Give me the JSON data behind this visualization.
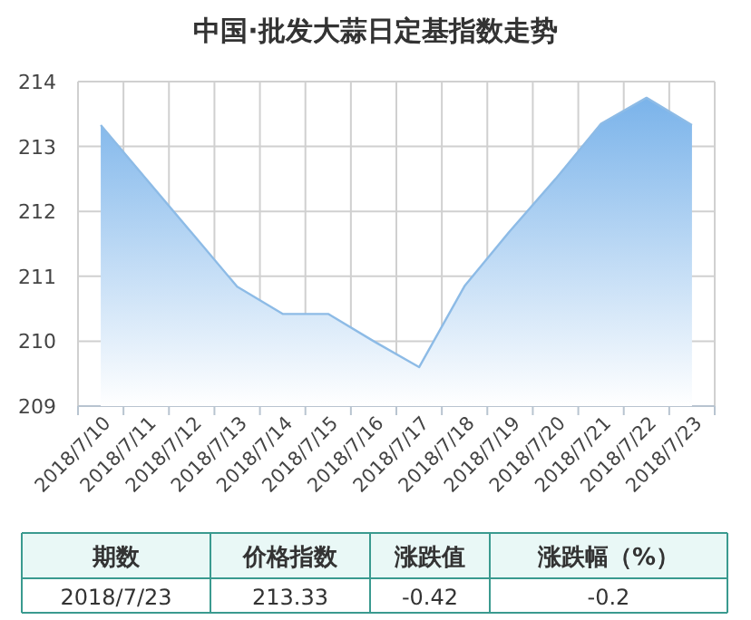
{
  "chart_data": {
    "type": "area",
    "title": "中国·批发大蒜日定基指数走势",
    "categories": [
      "2018/7/10",
      "2018/7/11",
      "2018/7/12",
      "2018/7/13",
      "2018/7/14",
      "2018/7/15",
      "2018/7/16",
      "2018/7/17",
      "2018/7/18",
      "2018/7/19",
      "2018/7/20",
      "2018/7/21",
      "2018/7/22",
      "2018/7/23"
    ],
    "values": [
      213.33,
      212.5,
      211.67,
      210.84,
      210.42,
      210.42,
      210.0,
      209.6,
      210.85,
      211.7,
      212.5,
      213.35,
      213.75,
      213.33
    ],
    "color": "#7ab3ea",
    "ylim": [
      209,
      214
    ],
    "yticks": [
      209,
      210,
      211,
      212,
      213,
      214
    ],
    "grid": true,
    "annotations": [
      "期数",
      "价格指数",
      "涨跌值",
      "涨跌幅（%）",
      "2018/7/23",
      "213.33",
      "-0.42",
      "-0.2"
    ]
  }
}
